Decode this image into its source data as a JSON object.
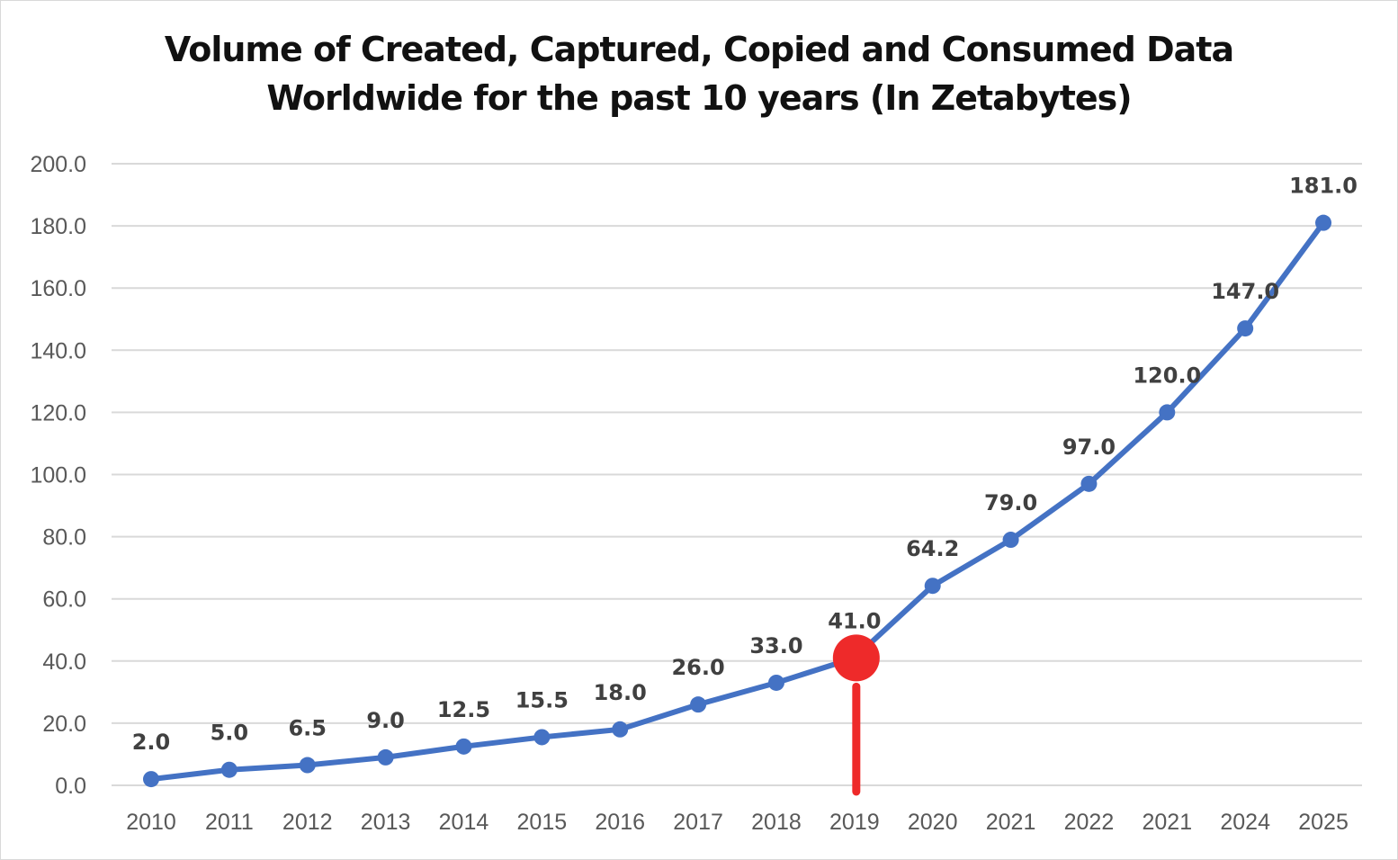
{
  "chart_data": {
    "type": "line",
    "title_line1": "Volume of  Created, Captured, Copied and Consumed Data",
    "title_line2": "Worldwide for the past 10 years (In Zetabytes)",
    "categories": [
      "2010",
      "2011",
      "2012",
      "2013",
      "2014",
      "2015",
      "2016",
      "2017",
      "2018",
      "2019",
      "2020",
      "2021",
      "2022",
      "2021",
      "2024",
      "2025"
    ],
    "values": [
      2.0,
      5.0,
      6.5,
      9.0,
      12.5,
      15.5,
      18.0,
      26.0,
      33.0,
      41.0,
      64.2,
      79.0,
      97.0,
      120.0,
      147.0,
      181.0
    ],
    "data_labels": [
      "2.0",
      "5.0",
      "6.5",
      "9.0",
      "12.5",
      "15.5",
      "18.0",
      "26.0",
      "33.0",
      "41.0",
      "64.2",
      "79.0",
      "97.0",
      "120.0",
      "147.0",
      "181.0"
    ],
    "y_ticks": [
      "0.0",
      "20.0",
      "40.0",
      "60.0",
      "80.0",
      "100.0",
      "120.0",
      "140.0",
      "160.0",
      "180.0",
      "200.0"
    ],
    "ylim": [
      0,
      200
    ],
    "grid": true,
    "series_color": "#4472c4",
    "highlight": {
      "category": "2019",
      "value": 41.0,
      "color": "#ee2a2a"
    }
  }
}
